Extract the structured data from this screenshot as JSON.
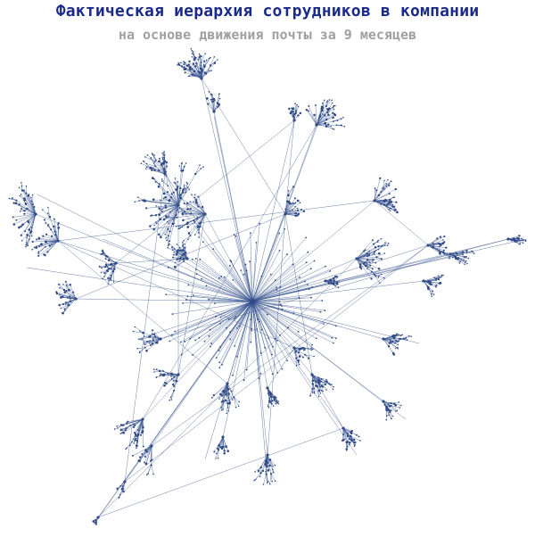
{
  "header": {
    "title": "Фактическая иерархия сотрудников в компании",
    "subtitle": "на основе движения почты за 9 месяцев"
  },
  "colors": {
    "title": "#1a2a8a",
    "subtitle": "#a0a0a0",
    "edges": "#3a5590",
    "nodes": "#2f4a86"
  }
}
